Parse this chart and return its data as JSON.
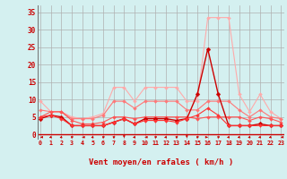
{
  "x": [
    0,
    1,
    2,
    3,
    4,
    5,
    6,
    7,
    8,
    9,
    10,
    11,
    12,
    13,
    14,
    15,
    16,
    17,
    18,
    19,
    20,
    21,
    22,
    23
  ],
  "series": [
    {
      "color": "#ffaaaa",
      "linewidth": 0.8,
      "markersize": 2.0,
      "values": [
        9.5,
        6.5,
        6.5,
        5.0,
        4.5,
        5.0,
        6.0,
        13.5,
        13.5,
        9.5,
        13.5,
        13.5,
        13.5,
        13.5,
        9.5,
        9.5,
        33.5,
        33.5,
        33.5,
        11.5,
        6.5,
        11.5,
        6.5,
        4.5
      ]
    },
    {
      "color": "#ff7777",
      "linewidth": 0.8,
      "markersize": 2.0,
      "values": [
        7.0,
        6.5,
        6.5,
        4.5,
        4.5,
        4.5,
        5.5,
        9.5,
        9.5,
        7.5,
        9.5,
        9.5,
        9.5,
        9.5,
        7.0,
        7.0,
        9.5,
        9.5,
        9.5,
        7.0,
        5.0,
        7.0,
        5.0,
        4.5
      ]
    },
    {
      "color": "#ff5555",
      "linewidth": 0.8,
      "markersize": 2.0,
      "values": [
        5.0,
        6.5,
        6.5,
        4.0,
        3.0,
        3.0,
        3.5,
        5.0,
        5.0,
        4.5,
        5.0,
        5.0,
        5.0,
        5.0,
        5.0,
        4.5,
        5.0,
        5.0,
        5.0,
        5.0,
        4.0,
        5.0,
        4.5,
        3.5
      ]
    },
    {
      "color": "#cc0000",
      "linewidth": 1.0,
      "markersize": 2.5,
      "values": [
        4.5,
        5.5,
        5.0,
        2.5,
        2.5,
        2.5,
        2.5,
        3.5,
        4.5,
        3.0,
        4.5,
        4.5,
        4.5,
        4.0,
        4.5,
        11.5,
        24.5,
        11.5,
        2.5,
        2.5,
        2.5,
        3.0,
        2.5,
        2.5
      ]
    },
    {
      "color": "#ff3333",
      "linewidth": 0.8,
      "markersize": 2.0,
      "values": [
        5.0,
        5.5,
        4.5,
        2.5,
        2.5,
        2.5,
        2.5,
        3.5,
        4.5,
        3.0,
        4.0,
        4.0,
        4.0,
        3.5,
        4.5,
        5.5,
        7.5,
        5.5,
        2.5,
        2.5,
        2.5,
        2.5,
        2.5,
        2.5
      ]
    }
  ],
  "arrow_angles_deg": [
    180,
    225,
    225,
    45,
    180,
    225,
    45,
    45,
    270,
    225,
    180,
    45,
    225,
    45,
    270,
    45,
    0,
    45,
    225,
    225,
    225,
    225,
    225,
    180
  ],
  "xlim": [
    -0.3,
    23.3
  ],
  "ylim": [
    0,
    37
  ],
  "yticks": [
    0,
    5,
    10,
    15,
    20,
    25,
    30,
    35
  ],
  "xticks": [
    0,
    1,
    2,
    3,
    4,
    5,
    6,
    7,
    8,
    9,
    10,
    11,
    12,
    13,
    14,
    15,
    16,
    17,
    18,
    19,
    20,
    21,
    22,
    23
  ],
  "xlabel": "Vent moyen/en rafales ( km/h )",
  "background_color": "#d4f0f0",
  "grid_color": "#b0b0b0",
  "axis_color": "#cc0000",
  "label_color": "#cc0000",
  "tick_color": "#cc0000"
}
